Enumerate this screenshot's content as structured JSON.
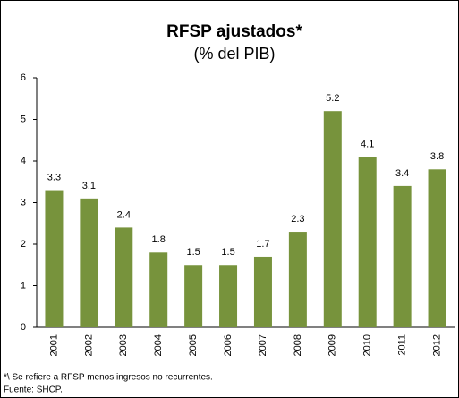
{
  "chart_data": {
    "type": "bar",
    "title": "RFSP ajustados*",
    "subtitle": "(% del PIB)",
    "categories": [
      "2001",
      "2002",
      "2003",
      "2004",
      "2005",
      "2006",
      "2007",
      "2008",
      "2009",
      "2010",
      "2011",
      "2012"
    ],
    "values": [
      3.3,
      3.1,
      2.4,
      1.8,
      1.5,
      1.5,
      1.7,
      2.3,
      5.2,
      4.1,
      3.4,
      3.8
    ],
    "color": "#77933c",
    "ylim": [
      0,
      6
    ],
    "yticks": [
      0,
      1,
      2,
      3,
      4,
      5,
      6
    ],
    "grid": false,
    "notes": [
      "*\\ Se refiere a RFSP menos ingresos no recurrentes.",
      "Fuente: SHCP."
    ]
  }
}
